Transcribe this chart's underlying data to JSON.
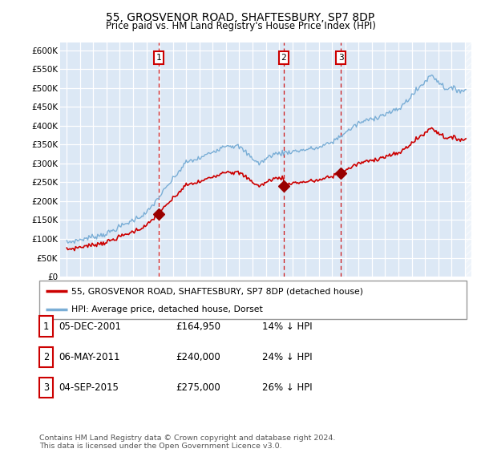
{
  "title": "55, GROSVENOR ROAD, SHAFTESBURY, SP7 8DP",
  "subtitle": "Price paid vs. HM Land Registry's House Price Index (HPI)",
  "plot_bg_color": "#dce8f5",
  "grid_color": "#ffffff",
  "red_line_color": "#cc0000",
  "blue_line_color": "#7aaed6",
  "hpi_line_label": "HPI: Average price, detached house, Dorset",
  "price_line_label": "55, GROSVENOR ROAD, SHAFTESBURY, SP7 8DP (detached house)",
  "ylim": [
    0,
    620000
  ],
  "yticks": [
    0,
    50000,
    100000,
    150000,
    200000,
    250000,
    300000,
    350000,
    400000,
    450000,
    500000,
    550000,
    600000
  ],
  "ytick_labels": [
    "£0",
    "£50K",
    "£100K",
    "£150K",
    "£200K",
    "£250K",
    "£300K",
    "£350K",
    "£400K",
    "£450K",
    "£500K",
    "£550K",
    "£600K"
  ],
  "sale_prices": [
    164950,
    240000,
    275000
  ],
  "sale_labels": [
    "1",
    "2",
    "3"
  ],
  "sale_date_nums": [
    2001.92,
    2011.34,
    2015.67
  ],
  "table_rows": [
    [
      "1",
      "05-DEC-2001",
      "£164,950",
      "14% ↓ HPI"
    ],
    [
      "2",
      "06-MAY-2011",
      "£240,000",
      "24% ↓ HPI"
    ],
    [
      "3",
      "04-SEP-2015",
      "£275,000",
      "26% ↓ HPI"
    ]
  ],
  "footer_text": "Contains HM Land Registry data © Crown copyright and database right 2024.\nThis data is licensed under the Open Government Licence v3.0.",
  "xlim_start": 1994.5,
  "xlim_end": 2025.5,
  "data_end": 2025.0
}
